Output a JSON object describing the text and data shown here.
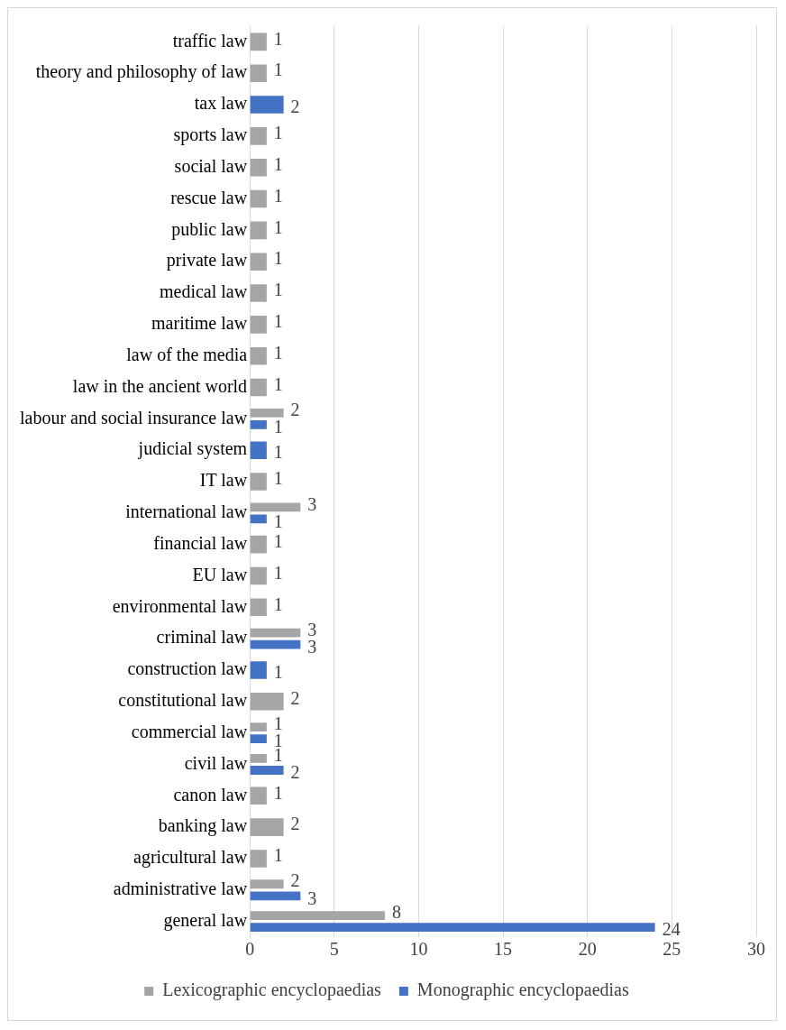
{
  "chart_data": {
    "type": "bar",
    "orientation": "horizontal",
    "categories": [
      "traffic law",
      "theory and philosophy of law",
      "tax law",
      "sports law",
      "social law",
      "rescue law",
      "public law",
      "private law",
      "medical law",
      "maritime law",
      "law of the media",
      "law in the ancient world",
      "labour and social insurance law",
      "judicial system",
      "IT law",
      "international law",
      "financial law",
      "EU law",
      "environmental law",
      "criminal law",
      "construction law",
      "constitutional law",
      "commercial law",
      "civil law",
      "canon law",
      "banking law",
      "agricultural law",
      "administrative law",
      "general law"
    ],
    "series": [
      {
        "name": "Lexicographic encyclopaedias",
        "color": "#a5a5a5",
        "values": [
          1,
          1,
          null,
          1,
          1,
          1,
          1,
          1,
          1,
          1,
          1,
          1,
          2,
          null,
          1,
          3,
          1,
          1,
          1,
          3,
          null,
          2,
          1,
          1,
          1,
          2,
          1,
          2,
          8
        ]
      },
      {
        "name": "Monographic encyclopaedias",
        "color": "#4472c4",
        "values": [
          null,
          null,
          2,
          null,
          null,
          null,
          null,
          null,
          null,
          null,
          null,
          null,
          1,
          1,
          null,
          1,
          null,
          null,
          null,
          3,
          1,
          null,
          1,
          2,
          null,
          null,
          null,
          3,
          24
        ]
      }
    ],
    "xlim": [
      0,
      30
    ],
    "xticks": [
      0,
      5,
      10,
      15,
      20,
      25,
      30
    ],
    "grid": "x",
    "legend": "bottom",
    "data_labels": true
  }
}
